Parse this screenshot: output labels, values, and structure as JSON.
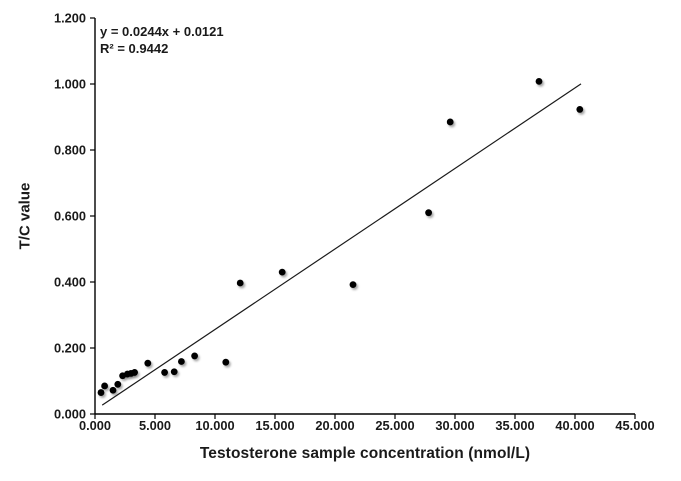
{
  "chart_data": {
    "type": "scatter",
    "title": "",
    "xlabel": "Testosterone sample concentration (nmol/L)",
    "ylabel": "T/C value",
    "xlim": [
      0,
      45
    ],
    "ylim": [
      0,
      1.2
    ],
    "x_ticks": [
      0,
      5,
      10,
      15,
      20,
      25,
      30,
      35,
      40,
      45
    ],
    "x_tick_labels": [
      "0.000",
      "5.000",
      "10.000",
      "15.000",
      "20.000",
      "25.000",
      "30.000",
      "35.000",
      "40.000",
      "45.000"
    ],
    "y_ticks": [
      0,
      0.2,
      0.4,
      0.6,
      0.8,
      1.0,
      1.2
    ],
    "y_tick_labels": [
      "0.000",
      "0.200",
      "0.400",
      "0.600",
      "0.800",
      "1.000",
      "1.200"
    ],
    "grid": false,
    "legend": null,
    "annotation_line1": "y = 0.0244x + 0.0121",
    "annotation_line2": "R² = 0.9442",
    "trendline": {
      "slope": 0.0244,
      "intercept": 0.0121,
      "x_start": 0.6,
      "x_end": 40.5
    },
    "marker_color": "#000000",
    "line_color": "#1a1a1a",
    "axis_color": "#000000",
    "points": [
      [
        0.5,
        0.065
      ],
      [
        0.8,
        0.085
      ],
      [
        1.5,
        0.072
      ],
      [
        1.9,
        0.09
      ],
      [
        2.3,
        0.116
      ],
      [
        2.7,
        0.121
      ],
      [
        3.0,
        0.123
      ],
      [
        3.3,
        0.126
      ],
      [
        4.4,
        0.154
      ],
      [
        5.8,
        0.126
      ],
      [
        6.6,
        0.128
      ],
      [
        7.2,
        0.159
      ],
      [
        8.3,
        0.176
      ],
      [
        10.9,
        0.157
      ],
      [
        12.1,
        0.397
      ],
      [
        15.6,
        0.43
      ],
      [
        21.5,
        0.392
      ],
      [
        27.8,
        0.61
      ],
      [
        29.6,
        0.885
      ],
      [
        37.0,
        1.008
      ],
      [
        40.4,
        0.923
      ]
    ]
  }
}
